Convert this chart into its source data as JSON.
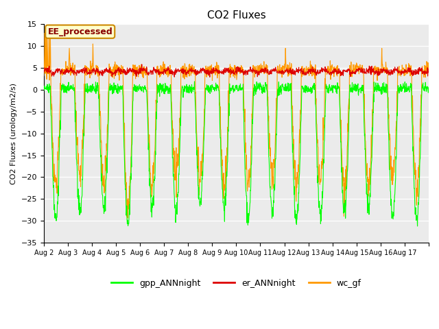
{
  "title": "CO2 Fluxes",
  "ylabel": "CO2 Fluxes (urology/m2/s)",
  "ylim": [
    -35,
    15
  ],
  "yticks": [
    -35,
    -30,
    -25,
    -20,
    -15,
    -10,
    -5,
    0,
    5,
    10,
    15
  ],
  "n_days": 16,
  "points_per_day": 96,
  "line_colors": {
    "gpp": "#00ff00",
    "er": "#dd0000",
    "wc": "#ff9900"
  },
  "line_widths": {
    "gpp": 0.8,
    "er": 0.8,
    "wc": 0.8
  },
  "legend_labels": [
    "gpp_ANNnight",
    "er_ANNnight",
    "wc_gf"
  ],
  "annotation_text": "EE_processed",
  "annotation_color": "#880000",
  "annotation_bg": "#ffffcc",
  "annotation_border": "#cc8800",
  "bg_color": "#ebebeb",
  "fig_bg": "#ffffff",
  "xlabel_dates": [
    "Aug 2",
    "Aug 3",
    "Aug 4",
    "Aug 5",
    "Aug 6",
    "Aug 7",
    "Aug 8",
    "Aug 9",
    "Aug 10",
    "Aug 11",
    "Aug 12",
    "Aug 13",
    "Aug 14",
    "Aug 15",
    "Aug 16",
    "Aug 17"
  ]
}
